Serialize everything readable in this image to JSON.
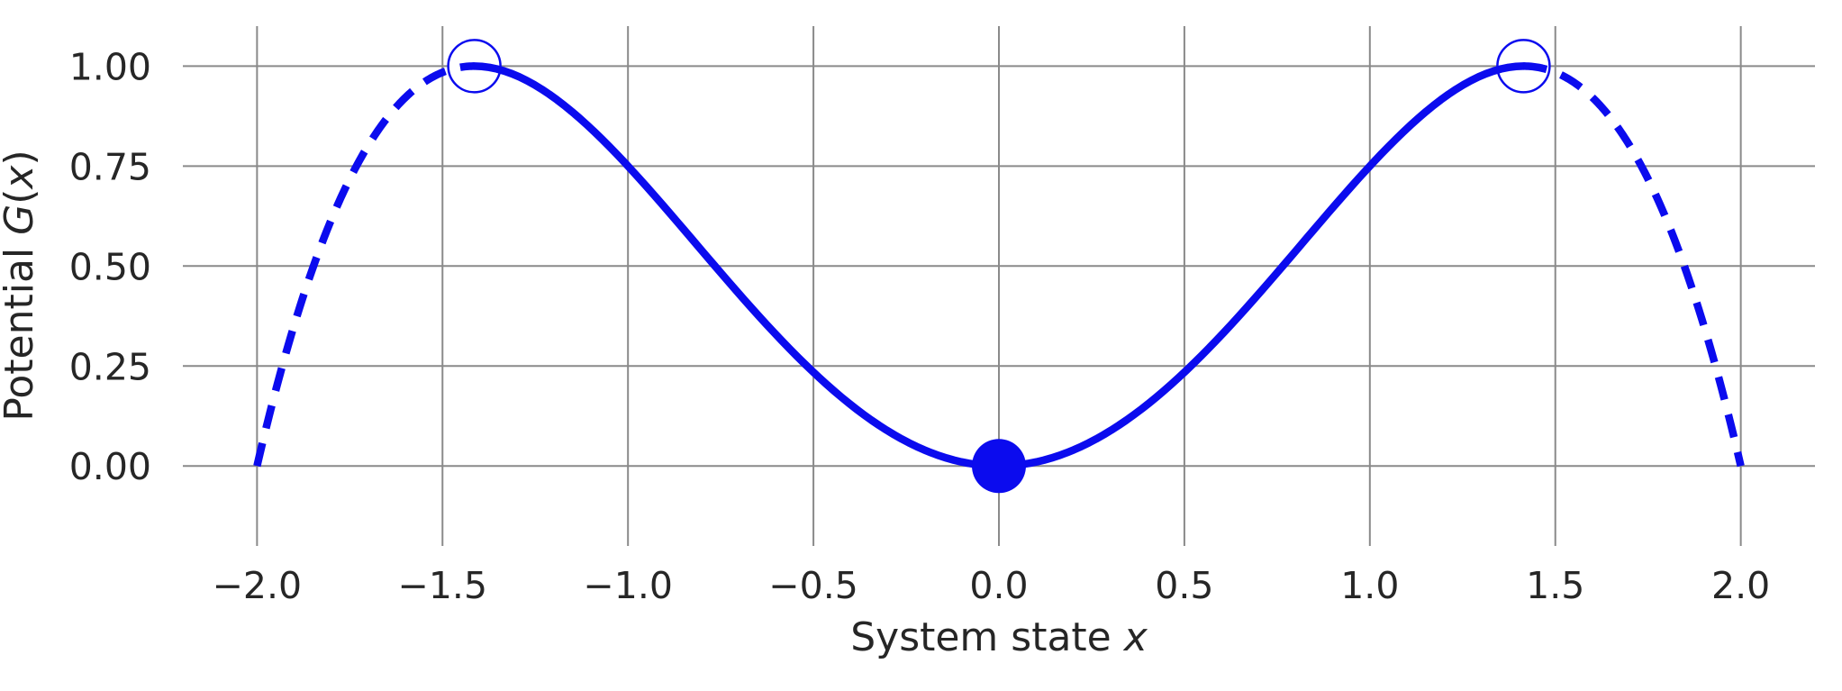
{
  "figure": {
    "background": "#ffffff"
  },
  "colors": {
    "curve": "#0b0bee",
    "grid": "#8a8a8a",
    "text": "#262626",
    "open_marker_face": "#ffffff"
  },
  "axes": {
    "xlabel": {
      "parts": [
        "System state ",
        "x"
      ]
    },
    "ylabel": {
      "parts": [
        "Potential ",
        "G",
        "(",
        "x",
        ")"
      ]
    }
  },
  "chart_data": {
    "type": "line",
    "title": "",
    "xlabel": "System state x",
    "ylabel": "Potential G(x)",
    "xlim": [
      -2.2,
      2.2
    ],
    "ylim": [
      -0.2,
      1.1
    ],
    "grid": true,
    "legend": false,
    "x_ticks": {
      "values": [
        -2.0,
        -1.5,
        -1.0,
        -0.5,
        0.0,
        0.5,
        1.0,
        1.5,
        2.0
      ],
      "labels": [
        "−2.0",
        "−1.5",
        "−1.0",
        "−0.5",
        "0.0",
        "0.5",
        "1.0",
        "1.5",
        "2.0"
      ]
    },
    "y_ticks": {
      "values": [
        0.0,
        0.25,
        0.5,
        0.75,
        1.0
      ],
      "labels": [
        "0.00",
        "0.25",
        "0.50",
        "0.75",
        "1.00"
      ]
    },
    "function": {
      "expression": "G(x) = x^2 - x^4/4",
      "polynomial_coefficients": {
        "2": 1,
        "4": -0.25
      }
    },
    "series": [
      {
        "name": "potential-left-dashed",
        "style": "dashed",
        "x_range": [
          -2.0,
          -1.41421356
        ]
      },
      {
        "name": "potential-solid",
        "style": "solid",
        "x_range": [
          -1.41421356,
          1.41421356
        ]
      },
      {
        "name": "potential-right-dashed",
        "style": "dashed",
        "x_range": [
          1.41421356,
          2.0
        ]
      }
    ],
    "sample_points": {
      "x": [
        -2.0,
        -1.75,
        -1.5,
        -1.25,
        -1.0,
        -0.75,
        -0.5,
        -0.25,
        0.0,
        0.25,
        0.5,
        0.75,
        1.0,
        1.25,
        1.5,
        1.75,
        2.0
      ],
      "y": [
        0.0,
        0.7178,
        0.9844,
        0.9521,
        0.75,
        0.4834,
        0.2344,
        0.0615,
        0.0,
        0.0615,
        0.2344,
        0.4834,
        0.75,
        0.9521,
        0.9844,
        0.7178,
        0.0
      ]
    },
    "equilibrium_points": [
      {
        "x": -1.41421356,
        "y": 1.0,
        "marker": "open-circle"
      },
      {
        "x": 0.0,
        "y": 0.0,
        "marker": "filled-circle"
      },
      {
        "x": 1.41421356,
        "y": 1.0,
        "marker": "open-circle"
      }
    ]
  }
}
